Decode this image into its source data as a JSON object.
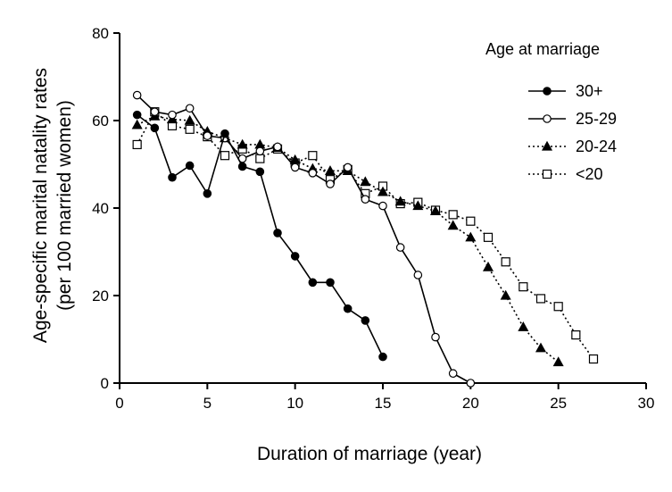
{
  "chart_data": {
    "type": "line",
    "title": "",
    "xlabel": "Duration of marriage (year)",
    "ylabel_line1": "Age-specific marital natality rates",
    "ylabel_line2": "(per 100 married women)",
    "xlim": [
      0,
      30
    ],
    "ylim": [
      0,
      80
    ],
    "xticks": [
      0,
      5,
      10,
      15,
      20,
      25,
      30
    ],
    "yticks": [
      0,
      20,
      40,
      60,
      80
    ],
    "grid": false,
    "legend_title": "Age at marriage",
    "legend_position": "top-right",
    "series": [
      {
        "name": "30+",
        "line": "solid",
        "marker": "filled-circle",
        "x": [
          1,
          2,
          3,
          4,
          5,
          6,
          7,
          8,
          9,
          10,
          11,
          12,
          13,
          14,
          15
        ],
        "y": [
          61.3,
          58.3,
          47.0,
          49.7,
          43.3,
          57.0,
          49.5,
          48.3,
          34.3,
          29.0,
          23.0,
          23.0,
          17.0,
          14.3,
          6.0
        ]
      },
      {
        "name": "25-29",
        "line": "solid",
        "marker": "open-circle",
        "x": [
          1,
          2,
          3,
          4,
          5,
          6,
          7,
          8,
          9,
          10,
          11,
          12,
          13,
          14,
          15,
          16,
          17,
          18,
          19,
          20
        ],
        "y": [
          65.8,
          62.0,
          61.3,
          62.8,
          56.5,
          56.0,
          51.3,
          53.0,
          54.0,
          49.3,
          48.0,
          45.5,
          49.3,
          42.0,
          40.5,
          31.0,
          24.7,
          10.5,
          2.2,
          0.0
        ]
      },
      {
        "name": "20-24",
        "line": "dotted",
        "marker": "filled-triangle",
        "x": [
          1,
          2,
          3,
          4,
          5,
          6,
          7,
          8,
          9,
          10,
          11,
          12,
          13,
          14,
          15,
          16,
          17,
          18,
          19,
          20,
          21,
          22,
          23,
          24,
          25
        ],
        "y": [
          59.0,
          61.0,
          60.3,
          60.0,
          57.5,
          56.0,
          54.5,
          54.5,
          53.8,
          51.0,
          49.0,
          48.5,
          48.5,
          46.0,
          43.7,
          41.5,
          40.5,
          39.3,
          36.0,
          33.3,
          26.5,
          20.0,
          12.8,
          8.0,
          4.8
        ]
      },
      {
        "name": "<20",
        "line": "dotted",
        "marker": "open-square",
        "x": [
          1,
          2,
          3,
          4,
          5,
          6,
          7,
          8,
          9,
          10,
          11,
          12,
          13,
          14,
          15,
          16,
          17,
          18,
          19,
          20,
          21,
          22,
          23,
          24,
          25,
          26,
          27
        ],
        "y": [
          54.5,
          62.0,
          58.8,
          58.0,
          56.3,
          52.0,
          53.5,
          51.3,
          53.5,
          50.3,
          52.0,
          46.5,
          48.8,
          43.3,
          45.0,
          41.0,
          41.3,
          39.5,
          38.5,
          37.0,
          33.3,
          27.7,
          22.0,
          19.3,
          17.5,
          11.0,
          5.5
        ]
      }
    ]
  }
}
